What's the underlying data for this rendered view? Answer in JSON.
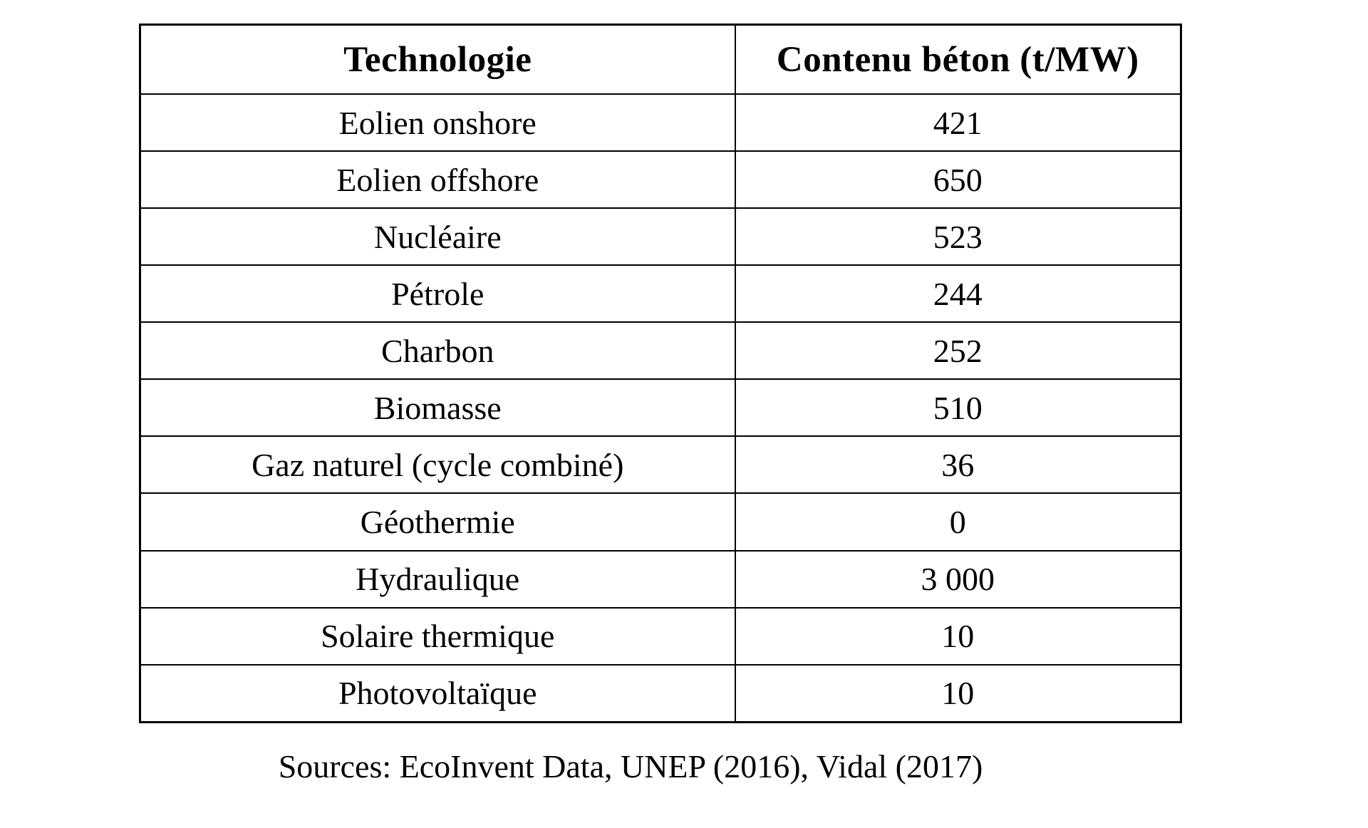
{
  "page": {
    "background_color": "#ffffff",
    "text_color": "#000000",
    "border_color": "#000000"
  },
  "table": {
    "col_headers": [
      "Technologie",
      "Contenu béton (t/MW)"
    ],
    "rows": [
      {
        "tech": "Eolien onshore",
        "value": "421"
      },
      {
        "tech": "Eolien offshore",
        "value": "650"
      },
      {
        "tech": "Nucléaire",
        "value": "523"
      },
      {
        "tech": "Pétrole",
        "value": "244"
      },
      {
        "tech": "Charbon",
        "value": "252"
      },
      {
        "tech": "Biomasse",
        "value": "510"
      },
      {
        "tech": "Gaz naturel (cycle combiné)",
        "value": "36"
      },
      {
        "tech": "Géothermie",
        "value": "0"
      },
      {
        "tech": "Hydraulique",
        "value": "3 000"
      },
      {
        "tech": "Solaire thermique",
        "value": "10"
      },
      {
        "tech": "Photovoltaïque",
        "value": "10"
      }
    ]
  },
  "footer": {
    "sources_text": "Sources: EcoInvent Data, UNEP (2016), Vidal (2017)"
  },
  "chart_data": {
    "type": "table",
    "columns": [
      "Technologie",
      "Contenu béton (t/MW)"
    ],
    "categories": [
      "Eolien onshore",
      "Eolien offshore",
      "Nucléaire",
      "Pétrole",
      "Charbon",
      "Biomasse",
      "Gaz naturel (cycle combiné)",
      "Géothermie",
      "Hydraulique",
      "Solaire thermique",
      "Photovoltaïque"
    ],
    "values": [
      421,
      650,
      523,
      244,
      252,
      510,
      36,
      0,
      3000,
      10,
      10
    ],
    "annotations": [
      "Sources: EcoInvent Data, UNEP (2016), Vidal (2017)"
    ]
  }
}
